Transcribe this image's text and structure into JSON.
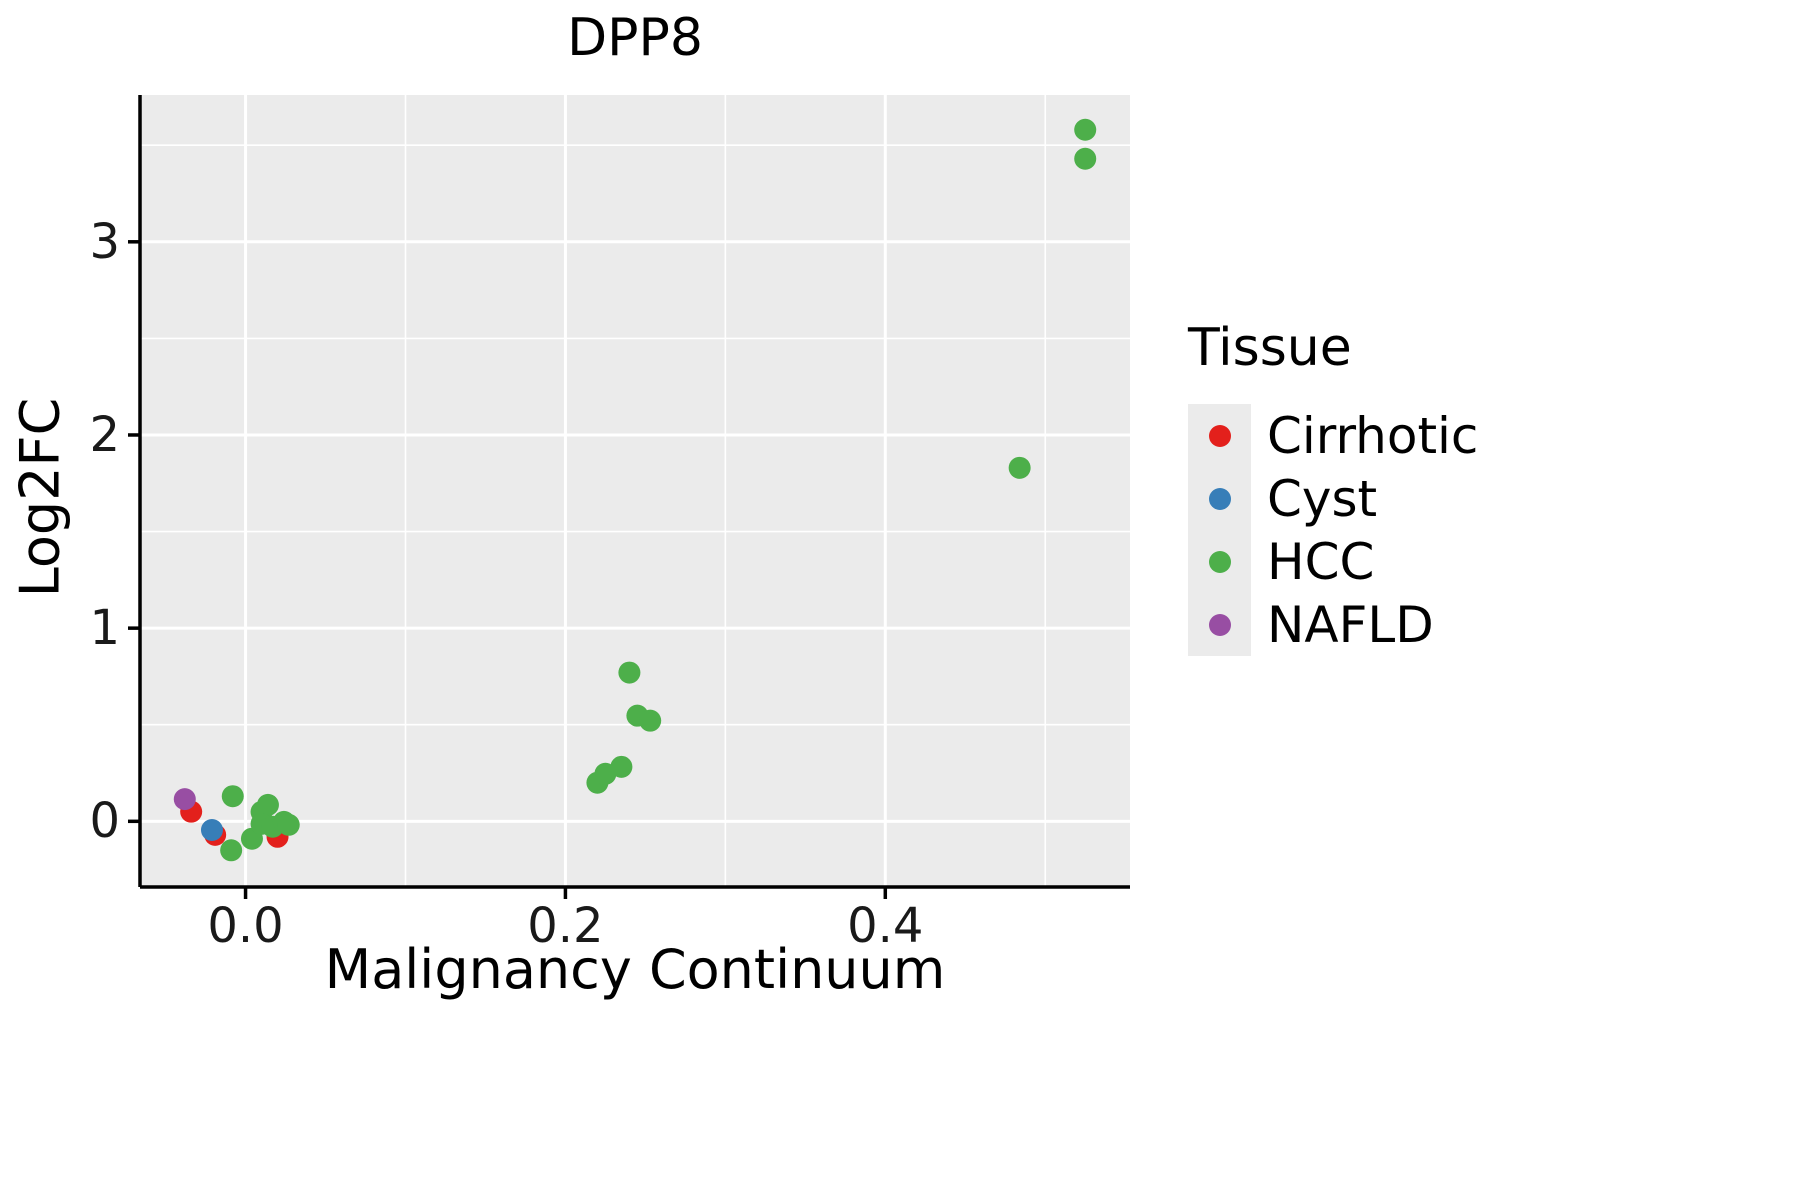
{
  "chart_data": {
    "type": "scatter",
    "title": "DPP8",
    "xlabel": "Malignancy Continuum",
    "ylabel": "Log2FC",
    "xlim": [
      -0.066,
      0.553
    ],
    "ylim": [
      -0.34,
      3.76
    ],
    "x_ticks": {
      "values": [
        0.0,
        0.2,
        0.4
      ],
      "labels": [
        "0.0",
        "0.2",
        "0.4"
      ]
    },
    "y_ticks": {
      "values": [
        0,
        1,
        2,
        3
      ],
      "labels": [
        "0",
        "1",
        "2",
        "3"
      ]
    },
    "x_minor_ticks": [
      -0.1,
      0.1,
      0.3,
      0.5
    ],
    "y_minor_ticks": [
      -0.5,
      0.5,
      1.5,
      2.5,
      3.5
    ],
    "grid": true,
    "legend_position": "right",
    "panel_background": "#ebebeb",
    "grid_color": "#ffffff",
    "axis_color": "#000000",
    "legend": {
      "title": "Tissue"
    },
    "series": [
      {
        "name": "Cirrhotic",
        "color": "#e3201c",
        "points": [
          [
            -0.034,
            0.05
          ],
          [
            -0.019,
            -0.07
          ],
          [
            0.02,
            -0.08
          ]
        ]
      },
      {
        "name": "Cyst",
        "color": "#377eb8",
        "points": [
          [
            -0.021,
            -0.045
          ]
        ]
      },
      {
        "name": "HCC",
        "color": "#4daf4a",
        "points": [
          [
            -0.008,
            0.13
          ],
          [
            -0.009,
            -0.15
          ],
          [
            0.004,
            -0.09
          ],
          [
            0.01,
            0.049
          ],
          [
            0.014,
            0.085
          ],
          [
            0.01,
            -0.013
          ],
          [
            0.017,
            -0.028
          ],
          [
            0.024,
            -0.003
          ],
          [
            0.027,
            -0.018
          ],
          [
            0.22,
            0.2
          ],
          [
            0.225,
            0.246
          ],
          [
            0.235,
            0.282
          ],
          [
            0.24,
            0.77
          ],
          [
            0.245,
            0.547
          ],
          [
            0.253,
            0.521
          ],
          [
            0.484,
            1.83
          ],
          [
            0.525,
            3.58
          ],
          [
            0.525,
            3.43
          ]
        ]
      },
      {
        "name": "NAFLD",
        "color": "#984ea3",
        "points": [
          [
            -0.038,
            0.115
          ]
        ]
      }
    ]
  }
}
